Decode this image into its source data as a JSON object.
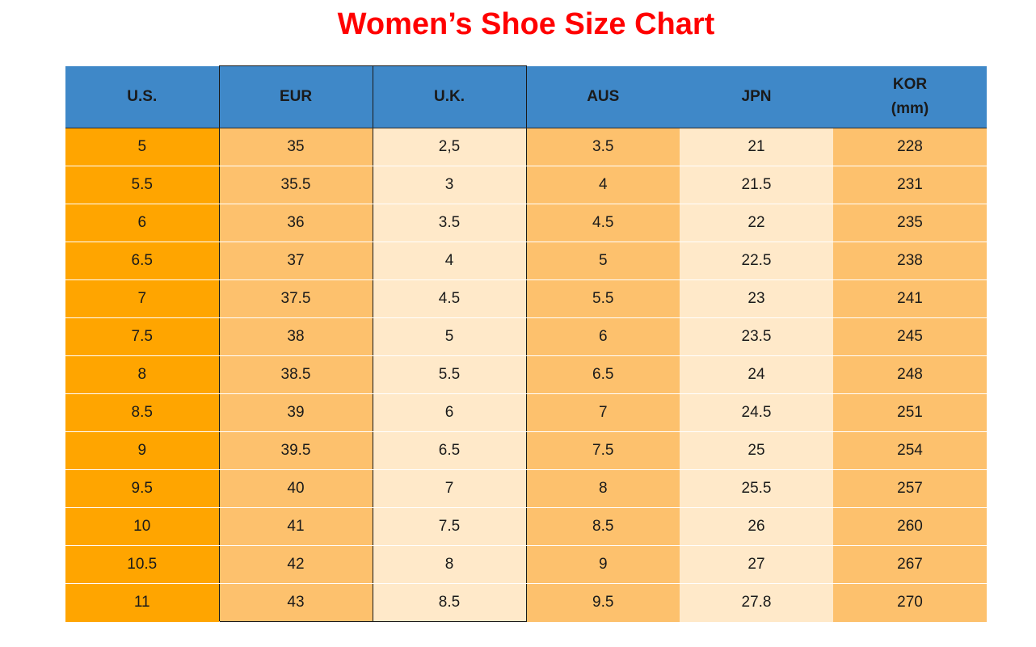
{
  "title": "Women’s Shoe Size Chart",
  "headers": {
    "us": "U.S.",
    "eur": "EUR",
    "uk": "U.K.",
    "aus": "AUS",
    "jpn": "JPN",
    "kor_line1": "KOR",
    "kor_line2": "(mm)"
  },
  "rows": [
    {
      "us": "5",
      "eur": "35",
      "uk": "2,5",
      "aus": "3.5",
      "jpn": "21",
      "kor": "228"
    },
    {
      "us": "5.5",
      "eur": "35.5",
      "uk": "3",
      "aus": "4",
      "jpn": "21.5",
      "kor": "231"
    },
    {
      "us": "6",
      "eur": "36",
      "uk": "3.5",
      "aus": "4.5",
      "jpn": "22",
      "kor": "235"
    },
    {
      "us": "6.5",
      "eur": "37",
      "uk": "4",
      "aus": "5",
      "jpn": "22.5",
      "kor": "238"
    },
    {
      "us": "7",
      "eur": "37.5",
      "uk": "4.5",
      "aus": "5.5",
      "jpn": "23",
      "kor": "241"
    },
    {
      "us": "7.5",
      "eur": "38",
      "uk": "5",
      "aus": "6",
      "jpn": "23.5",
      "kor": "245"
    },
    {
      "us": "8",
      "eur": "38.5",
      "uk": "5.5",
      "aus": "6.5",
      "jpn": "24",
      "kor": "248"
    },
    {
      "us": "8.5",
      "eur": "39",
      "uk": "6",
      "aus": "7",
      "jpn": "24.5",
      "kor": "251"
    },
    {
      "us": "9",
      "eur": "39.5",
      "uk": "6.5",
      "aus": "7.5",
      "jpn": "25",
      "kor": "254"
    },
    {
      "us": "9.5",
      "eur": "40",
      "uk": "7",
      "aus": "8",
      "jpn": "25.5",
      "kor": "257"
    },
    {
      "us": "10",
      "eur": "41",
      "uk": "7.5",
      "aus": "8.5",
      "jpn": "26",
      "kor": "260"
    },
    {
      "us": "10.5",
      "eur": "42",
      "uk": "8",
      "aus": "9",
      "jpn": "27",
      "kor": "267"
    },
    {
      "us": "11",
      "eur": "43",
      "uk": "8.5",
      "aus": "9.5",
      "jpn": "27.8",
      "kor": "270"
    }
  ],
  "colors": {
    "title": "#ff0000",
    "header": "#3f88c8",
    "us_column": "#ffa500",
    "mid_column": "#fdc16d",
    "light_column": "#ffe9c9"
  }
}
